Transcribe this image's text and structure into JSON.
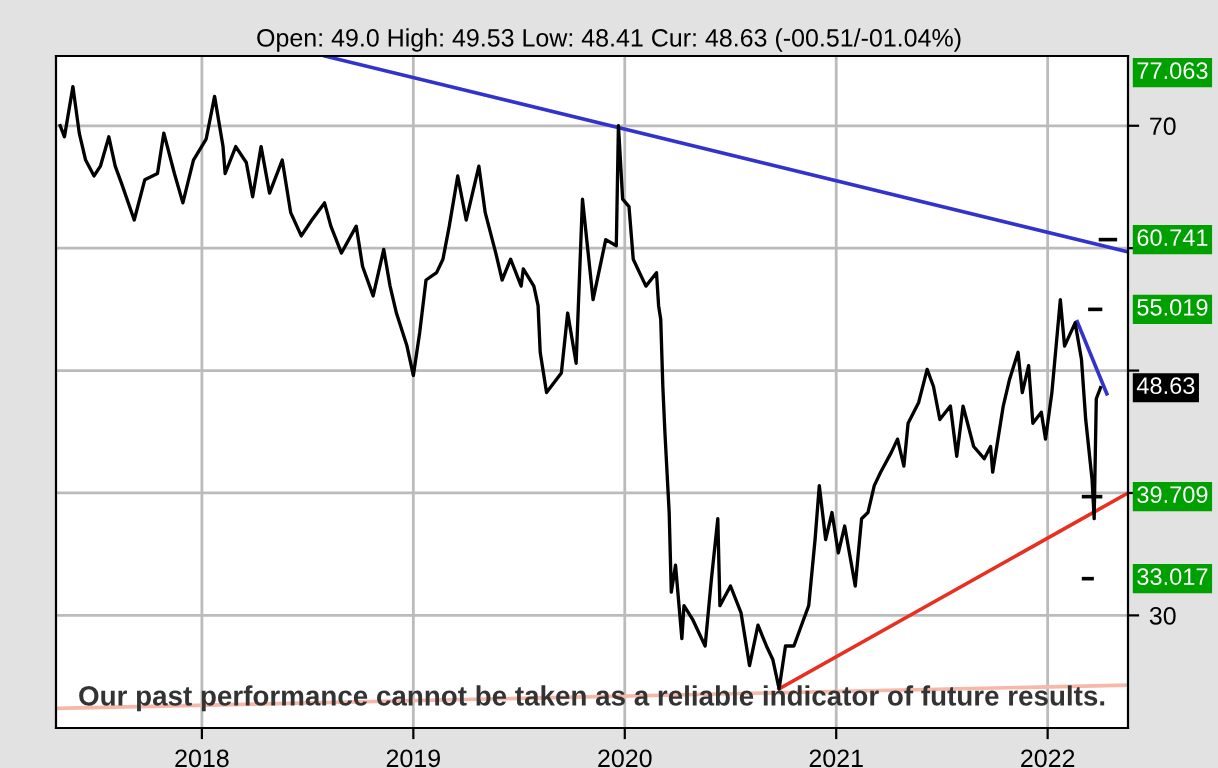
{
  "chart_data": {
    "type": "line",
    "subtitle": "Open: 49.0 High: 49.53 Low: 48.41 Cur: 48.63 (-00.51/-01.04%)",
    "series": [
      {
        "color": "#000000",
        "x": [
          2017.33,
          2017.35,
          2017.39,
          2017.42,
          2017.45,
          2017.49,
          2017.52,
          2017.56,
          2017.59,
          2017.62,
          2017.68,
          2017.73,
          2017.79,
          2017.82,
          2017.87,
          2017.91,
          2017.96,
          2018.02,
          2018.06,
          2018.1,
          2018.11,
          2018.16,
          2018.21,
          2018.24,
          2018.28,
          2018.32,
          2018.38,
          2018.42,
          2018.47,
          2018.52,
          2018.58,
          2018.61,
          2018.66,
          2018.73,
          2018.76,
          2018.81,
          2018.86,
          2018.89,
          2018.92,
          2018.97,
          2019.0,
          2019.03,
          2019.06,
          2019.11,
          2019.14,
          2019.17,
          2019.21,
          2019.25,
          2019.31,
          2019.34,
          2019.39,
          2019.42,
          2019.46,
          2019.51,
          2019.52,
          2019.57,
          2019.59,
          2019.6,
          2019.63,
          2019.7,
          2019.73,
          2019.77,
          2019.8,
          2019.85,
          2019.91,
          2019.96,
          2019.97,
          2019.99,
          2020.02,
          2020.04,
          2020.1,
          2020.15,
          2020.16,
          2020.17,
          2020.18,
          2020.19,
          2020.21,
          2020.22,
          2020.24,
          2020.27,
          2020.28,
          2020.32,
          2020.38,
          2020.41,
          2020.44,
          2020.45,
          2020.5,
          2020.55,
          2020.59,
          2020.63,
          2020.67,
          2020.7,
          2020.73,
          2020.76,
          2020.8,
          2020.84,
          2020.87,
          2020.9,
          2020.92,
          2020.95,
          2020.98,
          2021.01,
          2021.04,
          2021.09,
          2021.12,
          2021.15,
          2021.18,
          2021.21,
          2021.26,
          2021.29,
          2021.32,
          2021.34,
          2021.39,
          2021.43,
          2021.46,
          2021.49,
          2021.54,
          2021.57,
          2021.6,
          2021.65,
          2021.7,
          2021.73,
          2021.74,
          2021.79,
          2021.82,
          2021.86,
          2021.88,
          2021.91,
          2021.93,
          2021.97,
          2021.99,
          2022.02,
          2022.06,
          2022.08,
          2022.13,
          2022.16,
          2022.18,
          2022.21,
          2022.22,
          2022.23,
          2022.25
        ],
        "values": [
          70.0,
          69.1,
          73.2,
          69.4,
          67.2,
          65.9,
          66.7,
          69.1,
          66.7,
          65.3,
          62.3,
          65.6,
          66.1,
          69.4,
          66.1,
          63.7,
          67.2,
          68.9,
          72.4,
          68.3,
          66.1,
          68.3,
          67.0,
          64.2,
          68.3,
          64.5,
          67.2,
          62.9,
          61.0,
          62.3,
          63.7,
          61.8,
          59.6,
          61.8,
          58.5,
          56.1,
          59.9,
          56.9,
          54.7,
          52.0,
          49.6,
          53.1,
          57.4,
          58.0,
          59.1,
          61.8,
          65.9,
          62.3,
          66.7,
          62.9,
          59.6,
          57.4,
          59.1,
          56.9,
          58.3,
          56.9,
          55.3,
          51.5,
          48.2,
          49.8,
          54.7,
          50.6,
          64.0,
          55.8,
          60.7,
          60.2,
          70.0,
          64.0,
          63.4,
          59.1,
          56.9,
          58.0,
          55.3,
          54.2,
          48.7,
          44.9,
          38.4,
          31.9,
          34.1,
          28.1,
          30.8,
          29.7,
          27.5,
          33.0,
          37.9,
          30.8,
          32.4,
          30.2,
          25.9,
          29.2,
          27.5,
          26.4,
          24.0,
          27.5,
          27.5,
          29.4,
          30.8,
          36.2,
          40.6,
          36.2,
          38.4,
          35.1,
          37.3,
          32.4,
          37.9,
          38.4,
          40.6,
          41.7,
          43.3,
          44.4,
          42.2,
          45.7,
          47.4,
          50.1,
          48.7,
          46.0,
          47.1,
          43.0,
          47.1,
          43.8,
          42.8,
          43.8,
          41.7,
          47.1,
          49.3,
          51.5,
          48.2,
          50.4,
          45.7,
          46.6,
          44.4,
          48.2,
          55.8,
          52.0,
          53.9,
          50.9,
          46.0,
          41.1,
          37.9,
          47.7,
          48.6
        ]
      },
      {
        "color": "#3333cc",
        "x": [
          2018.58,
          2022.38
        ],
        "values": [
          75.7,
          59.7
        ]
      },
      {
        "color": "#3333cc",
        "x": [
          2022.14,
          2022.28
        ],
        "values": [
          54.0,
          48.1
        ]
      },
      {
        "color": "#e83020",
        "x": [
          2020.73,
          2022.38
        ],
        "values": [
          24.0,
          40.0
        ]
      },
      {
        "color": "#f6b8a8",
        "x": [
          2017.31,
          2022.38
        ],
        "values": [
          22.4,
          24.3
        ]
      },
      {
        "name": "60.741",
        "color": "#000000",
        "x": [
          2022.25,
          2022.32
        ],
        "values": [
          60.7,
          60.7
        ]
      },
      {
        "name": "55.019",
        "color": "#000000",
        "x": [
          2022.2,
          2022.25
        ],
        "values": [
          55.0,
          55.0
        ]
      },
      {
        "name": "39.709",
        "color": "#000000",
        "x": [
          2022.17,
          2022.25
        ],
        "values": [
          39.7,
          39.7
        ]
      },
      {
        "name": "33.017",
        "color": "#000000",
        "x": [
          2022.17,
          2022.21
        ],
        "values": [
          33.0,
          33.0
        ]
      }
    ],
    "legend": "right",
    "xlim": [
      2017.31,
      2022.38
    ],
    "xticks": [
      2018,
      2019,
      2020,
      2021,
      2022
    ],
    "ylim": [
      20.8,
      75.7
    ],
    "yticks": [
      30,
      {
        "value": 40,
        "label": null
      },
      {
        "value": 50,
        "label": null
      },
      {
        "value": 60,
        "label": null
      },
      70
    ],
    "grid": true,
    "annotations": [
      "77.063",
      "48.63",
      "Our past performance cannot be taken as a reliable indicator of future results."
    ]
  }
}
